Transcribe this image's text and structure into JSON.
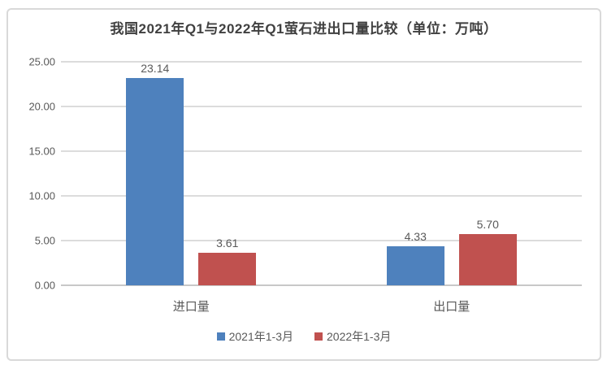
{
  "chart_data": {
    "type": "bar",
    "title": "我国2021年Q1与2022年Q1萤石进出口量比较（单位：万吨）",
    "categories": [
      "进口量",
      "出口量"
    ],
    "series": [
      {
        "name": "2021年1-3月",
        "color": "#4E81BD",
        "values": [
          23.14,
          4.33
        ]
      },
      {
        "name": "2022年1-3月",
        "color": "#C0514F",
        "values": [
          3.61,
          5.7
        ]
      }
    ],
    "data_labels": [
      [
        "23.14",
        "4.33"
      ],
      [
        "3.61",
        "5.70"
      ]
    ],
    "ylim": [
      0,
      25
    ],
    "yticks": [
      {
        "value": 0,
        "label": "0.00"
      },
      {
        "value": 5,
        "label": "5.00"
      },
      {
        "value": 10,
        "label": "10.00"
      },
      {
        "value": 15,
        "label": "15.00"
      },
      {
        "value": 20,
        "label": "20.00"
      },
      {
        "value": 25,
        "label": "25.00"
      }
    ],
    "grid": true,
    "legend_position": "bottom",
    "colors": {
      "gridline": "#DCDCDC",
      "axis_line": "#C8C8C8",
      "frame_border": "#D9D9D9",
      "text": "#595959",
      "title_text": "#404040",
      "background": "#FFFFFF"
    }
  }
}
